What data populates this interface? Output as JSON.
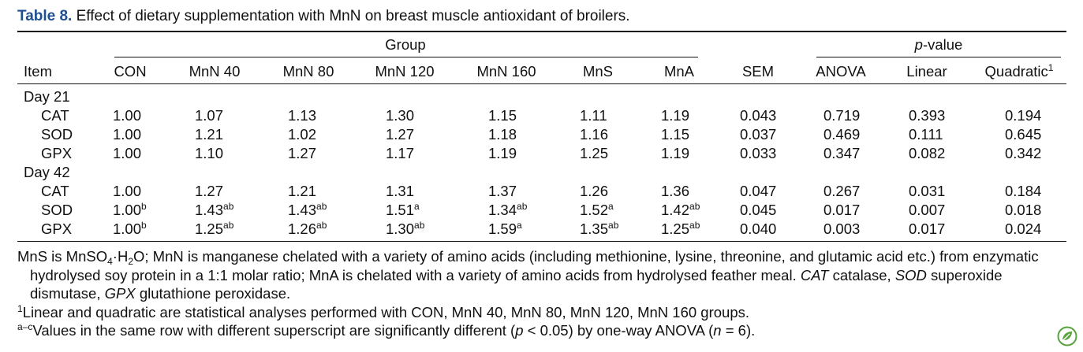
{
  "caption": {
    "label": "Table 8.",
    "text": "Effect of dietary supplementation with MnN on breast muscle antioxidant of broilers."
  },
  "header": {
    "group_label": "Group",
    "pvalue_label_italic": "p",
    "pvalue_label_rest": "-value",
    "item_label": "Item",
    "columns": [
      "CON",
      "MnN 40",
      "MnN 80",
      "MnN 120",
      "MnN 160",
      "MnS",
      "MnA",
      "SEM",
      "ANOVA",
      "Linear",
      "Quadratic"
    ],
    "quadratic_sup": "1"
  },
  "sections": [
    {
      "label": "Day 21",
      "rows": [
        {
          "item": "CAT",
          "values": [
            [
              "1.00",
              ""
            ],
            [
              "1.07",
              ""
            ],
            [
              "1.13",
              ""
            ],
            [
              "1.30",
              ""
            ],
            [
              "1.15",
              ""
            ],
            [
              "1.11",
              ""
            ],
            [
              "1.19",
              ""
            ]
          ],
          "sem": "0.043",
          "anova": "0.719",
          "linear": "0.393",
          "quadratic": "0.194"
        },
        {
          "item": "SOD",
          "values": [
            [
              "1.00",
              ""
            ],
            [
              "1.21",
              ""
            ],
            [
              "1.02",
              ""
            ],
            [
              "1.27",
              ""
            ],
            [
              "1.18",
              ""
            ],
            [
              "1.16",
              ""
            ],
            [
              "1.15",
              ""
            ]
          ],
          "sem": "0.037",
          "anova": "0.469",
          "linear": "0.111",
          "quadratic": "0.645"
        },
        {
          "item": "GPX",
          "values": [
            [
              "1.00",
              ""
            ],
            [
              "1.10",
              ""
            ],
            [
              "1.27",
              ""
            ],
            [
              "1.17",
              ""
            ],
            [
              "1.19",
              ""
            ],
            [
              "1.25",
              ""
            ],
            [
              "1.19",
              ""
            ]
          ],
          "sem": "0.033",
          "anova": "0.347",
          "linear": "0.082",
          "quadratic": "0.342"
        }
      ]
    },
    {
      "label": "Day 42",
      "rows": [
        {
          "item": "CAT",
          "values": [
            [
              "1.00",
              ""
            ],
            [
              "1.27",
              ""
            ],
            [
              "1.21",
              ""
            ],
            [
              "1.31",
              ""
            ],
            [
              "1.37",
              ""
            ],
            [
              "1.26",
              ""
            ],
            [
              "1.36",
              ""
            ]
          ],
          "sem": "0.047",
          "anova": "0.267",
          "linear": "0.031",
          "quadratic": "0.184"
        },
        {
          "item": "SOD",
          "values": [
            [
              "1.00",
              "b"
            ],
            [
              "1.43",
              "ab"
            ],
            [
              "1.43",
              "ab"
            ],
            [
              "1.51",
              "a"
            ],
            [
              "1.34",
              "ab"
            ],
            [
              "1.52",
              "a"
            ],
            [
              "1.42",
              "ab"
            ]
          ],
          "sem": "0.045",
          "anova": "0.017",
          "linear": "0.007",
          "quadratic": "0.018"
        },
        {
          "item": "GPX",
          "values": [
            [
              "1.00",
              "b"
            ],
            [
              "1.25",
              "ab"
            ],
            [
              "1.26",
              "ab"
            ],
            [
              "1.30",
              "ab"
            ],
            [
              "1.59",
              "a"
            ],
            [
              "1.35",
              "ab"
            ],
            [
              "1.25",
              "ab"
            ]
          ],
          "sem": "0.040",
          "anova": "0.003",
          "linear": "0.017",
          "quadratic": "0.024"
        }
      ]
    }
  ],
  "notes": {
    "n1_a": "MnS is MnSO",
    "n1_sub4": "4",
    "n1_b": "·H",
    "n1_sub2": "2",
    "n1_c": "O; MnN is manganese chelated with a variety of amino acids (including methionine, lysine, threonine, and glutamic acid etc.) from enzymatic hydrolysed soy protein in a 1:1 molar ratio; MnA is chelated with a variety of amino acids from hydrolysed feather meal. ",
    "cat_abbr": "CAT",
    "cat_def": " catalase, ",
    "sod_abbr": "SOD",
    "sod_def": " superoxide dismutase, ",
    "gpx_abbr": "GPX",
    "gpx_def": " glutathione peroxidase.",
    "n2_mark": "1",
    "n2_text": "Linear and quadratic are statistical analyses performed with CON, MnN 40, MnN 80, MnN 120, MnN 160 groups.",
    "n3_mark": "a–c",
    "n3_a": "Values in the same row with different superscript are significantly different (",
    "n3_p": "p",
    "n3_b": " < 0.05) by one-way ANOVA (",
    "n3_n": "n",
    "n3_c": " = 6)."
  },
  "icons": {
    "corner_logo": "leaf-badge-icon"
  },
  "colors": {
    "caption_label": "#1d4f91",
    "logo": "#5aa33f"
  }
}
